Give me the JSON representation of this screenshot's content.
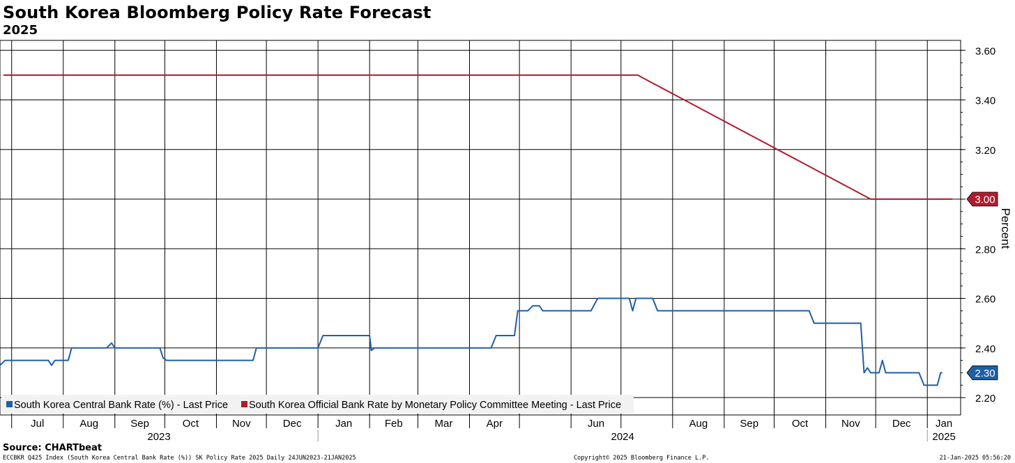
{
  "chart_data": {
    "type": "line",
    "title": "South Korea Bloomberg Policy Rate Forecast",
    "subtitle": "2025",
    "ylabel": "Percent",
    "ylim": [
      2.13,
      3.64
    ],
    "y_ticks": [
      "2.20",
      "2.40",
      "2.60",
      "2.80",
      "3.00",
      "3.20",
      "3.40",
      "3.60"
    ],
    "x_month_ticks": [
      "Jul",
      "Aug",
      "Sep",
      "Oct",
      "Nov",
      "Dec",
      "Jan",
      "Feb",
      "Mar",
      "Apr",
      "Jun",
      "Aug",
      "Sep",
      "Oct",
      "Nov",
      "Dec",
      "Jan"
    ],
    "x_year_labels": [
      "2023",
      "2024",
      "2025"
    ],
    "grid": true,
    "legend_placement": "bottom-left",
    "series": [
      {
        "name": "South Korea Central Bank Rate (%) - Last Price",
        "color": "#1f5fa5",
        "last_value_label": "2.30",
        "points": [
          [
            "2023-06-24",
            2.33
          ],
          [
            "2023-06-27",
            2.35
          ],
          [
            "2023-07-23",
            2.35
          ],
          [
            "2023-07-25",
            2.33
          ],
          [
            "2023-07-27",
            2.35
          ],
          [
            "2023-08-04",
            2.35
          ],
          [
            "2023-08-06",
            2.4
          ],
          [
            "2023-08-27",
            2.4
          ],
          [
            "2023-08-30",
            2.42
          ],
          [
            "2023-09-01",
            2.4
          ],
          [
            "2023-09-28",
            2.4
          ],
          [
            "2023-09-30",
            2.36
          ],
          [
            "2023-10-02",
            2.35
          ],
          [
            "2023-11-23",
            2.35
          ],
          [
            "2023-11-25",
            2.4
          ],
          [
            "2024-01-01",
            2.4
          ],
          [
            "2024-01-04",
            2.45
          ],
          [
            "2024-02-01",
            2.45
          ],
          [
            "2024-02-02",
            2.39
          ],
          [
            "2024-02-04",
            2.4
          ],
          [
            "2024-04-14",
            2.4
          ],
          [
            "2024-04-17",
            2.45
          ],
          [
            "2024-04-28",
            2.45
          ],
          [
            "2024-04-30",
            2.55
          ],
          [
            "2024-05-06",
            2.55
          ],
          [
            "2024-05-09",
            2.57
          ],
          [
            "2024-05-13",
            2.57
          ],
          [
            "2024-05-15",
            2.55
          ],
          [
            "2024-06-13",
            2.55
          ],
          [
            "2024-06-17",
            2.6
          ],
          [
            "2024-07-06",
            2.6
          ],
          [
            "2024-07-08",
            2.55
          ],
          [
            "2024-07-10",
            2.6
          ],
          [
            "2024-07-20",
            2.6
          ],
          [
            "2024-07-23",
            2.55
          ],
          [
            "2024-10-22",
            2.55
          ],
          [
            "2024-10-25",
            2.5
          ],
          [
            "2024-11-22",
            2.5
          ],
          [
            "2024-11-24",
            2.3
          ],
          [
            "2024-11-26",
            2.32
          ],
          [
            "2024-11-28",
            2.3
          ],
          [
            "2024-12-03",
            2.3
          ],
          [
            "2024-12-05",
            2.35
          ],
          [
            "2024-12-07",
            2.3
          ],
          [
            "2024-12-27",
            2.3
          ],
          [
            "2024-12-30",
            2.25
          ],
          [
            "2025-01-07",
            2.25
          ],
          [
            "2025-01-09",
            2.3
          ],
          [
            "2025-01-10",
            2.3
          ]
        ]
      },
      {
        "name": "South Korea Official Bank Rate by Monetary Policy Committee Meeting - Last Price",
        "color": "#b01c2e",
        "last_value_label": "3.00",
        "points": [
          [
            "2023-06-26",
            3.5
          ],
          [
            "2024-07-11",
            3.5
          ],
          [
            "2024-11-28",
            3.0
          ],
          [
            "2025-01-16",
            3.0
          ]
        ]
      }
    ]
  },
  "source": "Source: CHARTbeat",
  "footer": {
    "left": "ECCBKR Q425 Index (South Korea Central Bank Rate (%)) SK Policy Rate 2025  Daily 24JUN2023-21JAN2025",
    "middle": "Copyright© 2025 Bloomberg Finance L.P.",
    "right": "21-Jan-2025 05:56:20"
  }
}
